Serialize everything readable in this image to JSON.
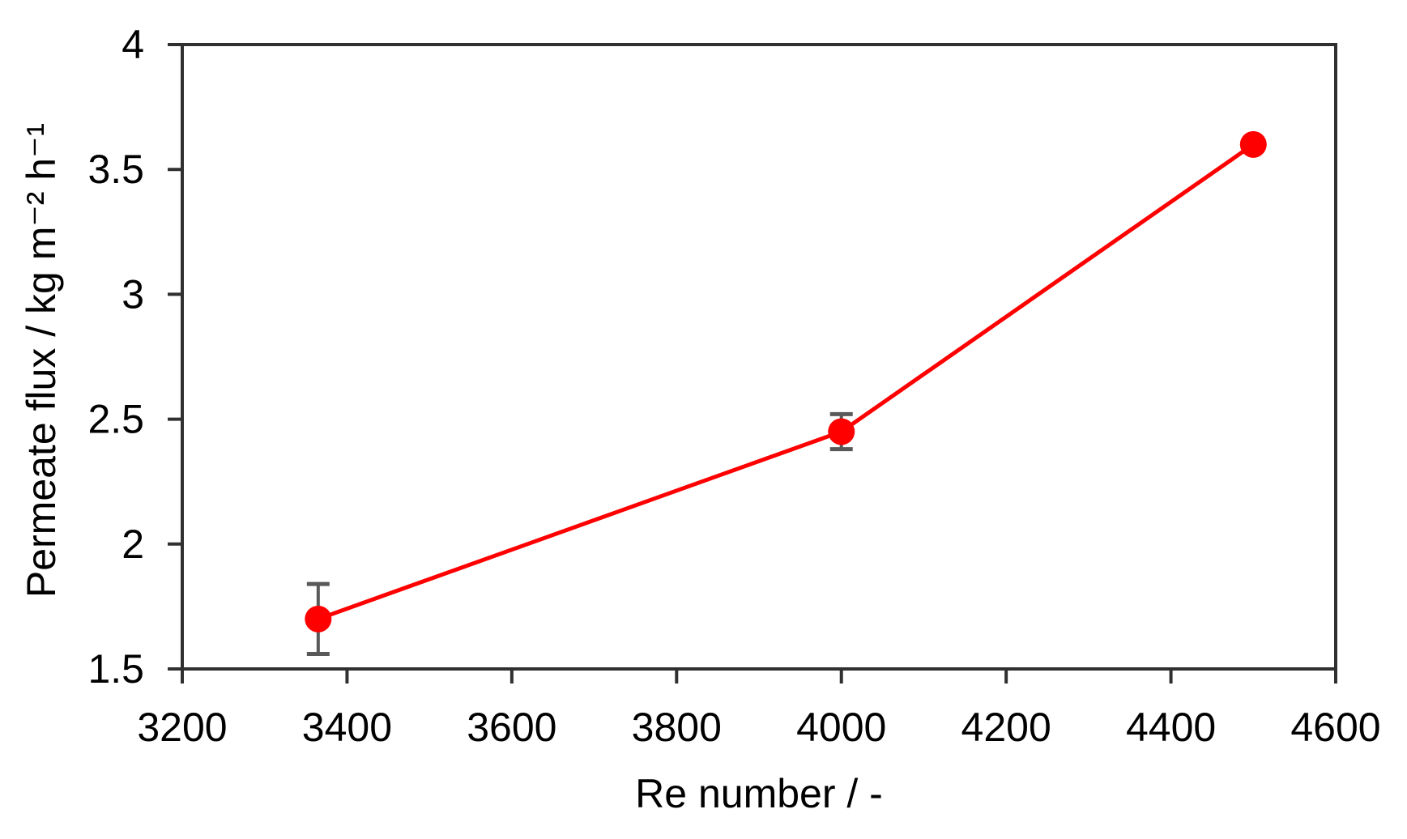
{
  "chart_data": {
    "type": "line",
    "title": "",
    "xlabel": "Re number / -",
    "ylabel": "Permeate flux / kg m⁻² h⁻¹",
    "x": [
      3365,
      4000,
      4500
    ],
    "y": [
      1.7,
      2.45,
      3.6
    ],
    "yerr": [
      0.14,
      0.07,
      0
    ],
    "xlim": [
      3200,
      4600
    ],
    "ylim": [
      1.5,
      4
    ],
    "xticks": [
      3200,
      3400,
      3600,
      3800,
      4000,
      4200,
      4400,
      4600
    ],
    "yticks": [
      1.5,
      2,
      2.5,
      3,
      3.5,
      4
    ],
    "xtick_labels": [
      "3200",
      "3400",
      "3600",
      "3800",
      "4000",
      "4200",
      "4400",
      "4600"
    ],
    "ytick_labels": [
      "1.5",
      "2",
      "2.5",
      "3",
      "3.5",
      "4"
    ],
    "grid": false,
    "legend": false,
    "marker": "circle",
    "colors": {
      "series": "#ff0000",
      "error_bar": "#595959",
      "axis": "#303030",
      "text": "#000000",
      "background": "#ffffff"
    }
  }
}
